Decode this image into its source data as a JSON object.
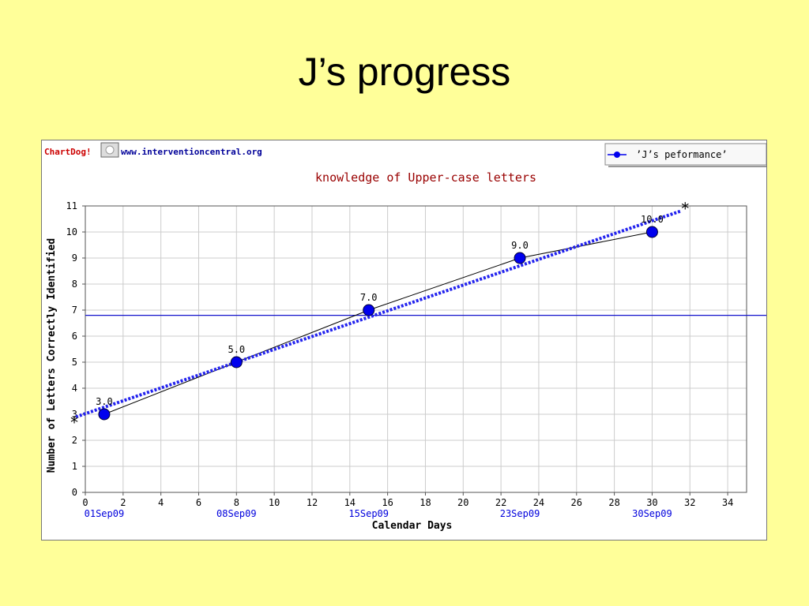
{
  "slide": {
    "title": "J’s progress"
  },
  "branding": {
    "chartdog_text": "ChartDog!",
    "site_text": "www.interventioncentral.org",
    "brand_color": "#cc0000",
    "site_color": "#000099"
  },
  "colors": {
    "background": "#ffff99",
    "series": "#0000ee",
    "series_line": "#000000",
    "trend": "#2222ee",
    "aimline": "#1111cc",
    "title": "#990000",
    "date_labels": "#0000dd",
    "grid": "#cccccc"
  },
  "chart_data": {
    "type": "line",
    "title": "knowledge of Upper-case letters",
    "xlabel": "Calendar Days",
    "ylabel": "Number of Letters Correctly Identified",
    "xlim": [
      0,
      35
    ],
    "ylim": [
      0,
      11
    ],
    "x_ticks": [
      0,
      2,
      4,
      6,
      8,
      10,
      12,
      14,
      16,
      18,
      20,
      22,
      24,
      26,
      28,
      30,
      32,
      34
    ],
    "y_ticks": [
      0,
      1,
      2,
      3,
      4,
      5,
      6,
      7,
      8,
      9,
      10,
      11
    ],
    "date_labels": [
      {
        "x": 1,
        "label": "01Sep09"
      },
      {
        "x": 8,
        "label": "08Sep09"
      },
      {
        "x": 15,
        "label": "15Sep09"
      },
      {
        "x": 23,
        "label": "23Sep09"
      },
      {
        "x": 30,
        "label": "30Sep09"
      }
    ],
    "series": [
      {
        "name": "’J’s peformance’",
        "points": [
          {
            "x": 1,
            "y": 3.0,
            "label": "3.0"
          },
          {
            "x": 8,
            "y": 5.0,
            "label": "5.0"
          },
          {
            "x": 15,
            "y": 7.0,
            "label": "7.0"
          },
          {
            "x": 23,
            "y": 9.0,
            "label": "9.0"
          },
          {
            "x": 30,
            "y": 10.0,
            "label": "10.0"
          }
        ]
      }
    ],
    "trend_line": {
      "start": {
        "x": -0.5,
        "y": 2.9
      },
      "end": {
        "x": 31.5,
        "y": 10.8
      }
    },
    "aim_line_y": 6.8,
    "grid": true,
    "legend_position": "top-right"
  }
}
